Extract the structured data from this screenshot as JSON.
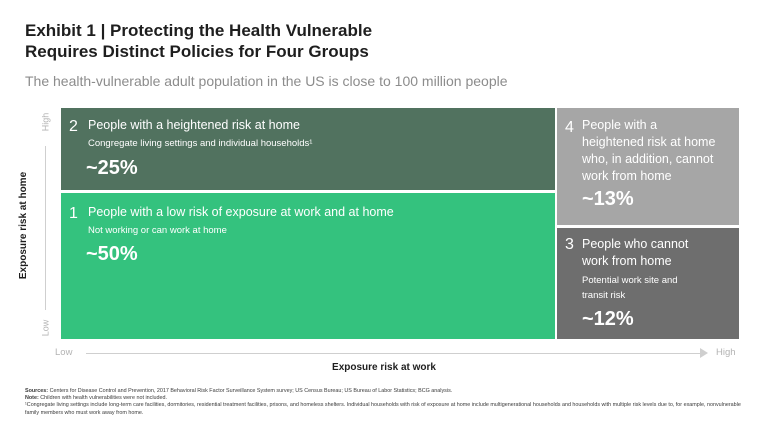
{
  "header": {
    "title_line1": "Exhibit 1 | Protecting the Health Vulnerable",
    "title_line2": "Requires Distinct Policies for Four Groups",
    "subtitle": "The health-vulnerable adult population in the US is close to 100 million people"
  },
  "axes": {
    "y_label": "Exposure risk at home",
    "y_high": "High",
    "y_low": "Low",
    "x_label": "Exposure risk at work",
    "x_low": "Low",
    "x_high": "High"
  },
  "groups": {
    "g2": {
      "number": "2",
      "title": "People with a heightened risk at home",
      "detail": "Congregate living settings and individual households¹",
      "share": "~25%",
      "color": "#51725f"
    },
    "g1": {
      "number": "1",
      "title": "People with a low risk of exposure at work and at home",
      "detail": "Not working or can work at home",
      "share": "~50%",
      "color": "#34c27e"
    },
    "g4": {
      "number": "4",
      "title_lines": [
        "People with a",
        "heightened risk at home",
        "who, in addition, cannot",
        "work from home"
      ],
      "share": "~13%",
      "color": "#a6a6a6"
    },
    "g3": {
      "number": "3",
      "title_lines": [
        "People who cannot",
        "work from home"
      ],
      "detail_lines": [
        "Potential work site and",
        "transit risk"
      ],
      "share": "~12%",
      "color": "#6e6e6e"
    }
  },
  "footer": {
    "sources_label": "Sources:",
    "sources_text": "Centers for Disease Control and Prevention, 2017 Behavioral Risk Factor Surveillance System survey; US Census Bureau; US Bureau of Labor Statistics; BCG analysis.",
    "note_label": "Note:",
    "note_text": "Children with health vulnerabilities were not included.",
    "footnote": "¹Congregate living settings include long-term care facilities, dormitories, residential treatment facilities, prisons, and homeless shelters. Individual households with risk of exposure at home include multigenerational households and households with multiple risk levels due to, for example, nonvulnerable family members who must work away from home."
  }
}
